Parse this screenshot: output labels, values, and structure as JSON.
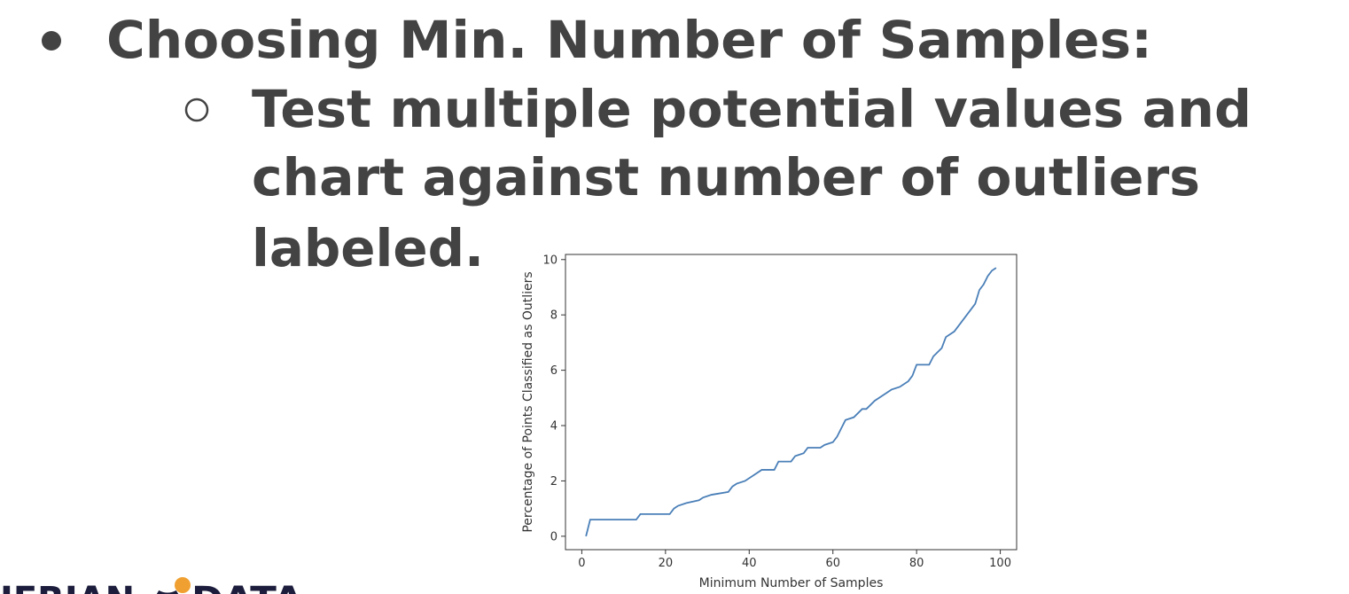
{
  "slide": {
    "bullet": "Choosing Min. Number of Samples:",
    "sub_bullet_lines": [
      "Test multiple potential values and",
      "chart against number of outliers",
      "labeled."
    ],
    "logo": [
      "IERIAN",
      "DATA"
    ]
  },
  "chart_data": {
    "type": "line",
    "x_label": "Minimum Number of Samples",
    "y_label": "Percentage of Points Classified as Outliers",
    "x": [
      1,
      2,
      13,
      14,
      21,
      22,
      23,
      25,
      28,
      29,
      31,
      35,
      36,
      37,
      39,
      41,
      43,
      46,
      47,
      50,
      51,
      53,
      54,
      57,
      58,
      60,
      61,
      62,
      63,
      65,
      67,
      68,
      70,
      72,
      74,
      76,
      78,
      79,
      80,
      83,
      84,
      86,
      87,
      89,
      90,
      92,
      94,
      95,
      96,
      97,
      98,
      99
    ],
    "series": [
      {
        "color": "#4a7fb8",
        "values": [
          0,
          0.6,
          0.6,
          0.8,
          0.8,
          1.0,
          1.1,
          1.2,
          1.3,
          1.4,
          1.5,
          1.6,
          1.8,
          1.9,
          2.0,
          2.2,
          2.4,
          2.4,
          2.7,
          2.7,
          2.9,
          3.0,
          3.2,
          3.2,
          3.3,
          3.4,
          3.6,
          3.9,
          4.2,
          4.3,
          4.6,
          4.6,
          4.9,
          5.1,
          5.3,
          5.4,
          5.6,
          5.8,
          6.2,
          6.2,
          6.5,
          6.8,
          7.2,
          7.4,
          7.6,
          8.0,
          8.4,
          8.9,
          9.1,
          9.4,
          9.6,
          9.7
        ]
      }
    ],
    "xlim": [
      -3.9,
      103.9
    ],
    "ylim": [
      -0.485,
      10.185
    ],
    "xticks": [
      0,
      20,
      40,
      60,
      80,
      100
    ],
    "yticks": [
      0,
      2,
      4,
      6,
      8,
      10
    ],
    "grid": false
  }
}
